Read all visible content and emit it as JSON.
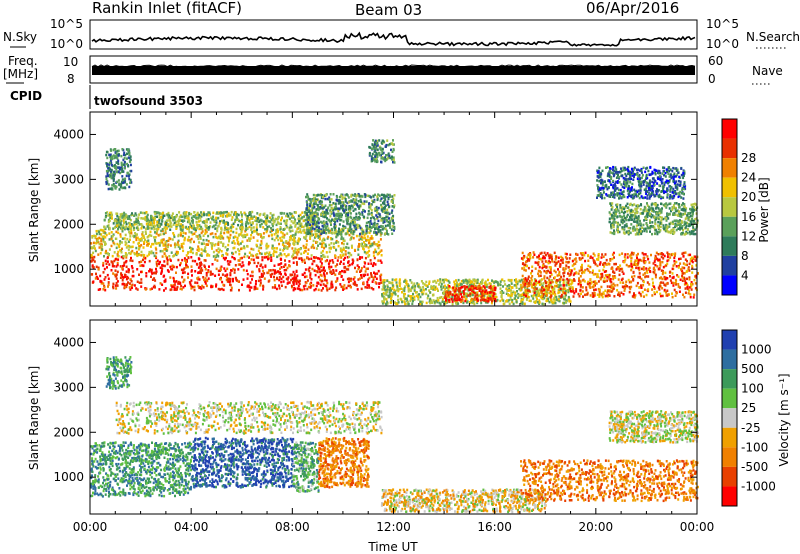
{
  "header": {
    "station": "Rankin Inlet (fitACF)",
    "beam": "Beam 03",
    "date": "06/Apr/2016"
  },
  "strip_panels": {
    "nsky_label": "N.Sky",
    "nsky_ticks": [
      "10^5",
      "10^0"
    ],
    "nsearch_label": "N.Search",
    "nsearch_ticks": [
      "10^5",
      "10^0"
    ],
    "freq_label_line1": "Freq.",
    "freq_label_line2": "[MHz]",
    "freq_ticks": [
      "10",
      "8"
    ],
    "nave_label": "Nave",
    "nave_ticks": [
      "60",
      "0"
    ],
    "cpid_label": "CPID",
    "cpid_value": "twofsound 3503"
  },
  "colors": {
    "power": [
      "#0000ff",
      "#2040a0",
      "#2e7b5a",
      "#5aa05a",
      "#b8c840",
      "#f0c000",
      "#f08000",
      "#e83000",
      "#ff0000"
    ],
    "velocity": [
      "#2040b0",
      "#2e6ea0",
      "#3c9a5a",
      "#60c040",
      "#c8c8c8",
      "#f0a000",
      "#f08000",
      "#e84000",
      "#ff0000"
    ]
  },
  "chart_data": [
    {
      "type": "heatmap",
      "name": "power",
      "ylabel": "Slant Range [km]",
      "ylim": [
        180,
        4500
      ],
      "yticks": [
        "1000",
        "2000",
        "3000",
        "4000"
      ],
      "colorbar_label": "Power [dB]",
      "colorbar_ticks": [
        "4",
        "8",
        "12",
        "16",
        "20",
        "24",
        "28"
      ],
      "xlim_hours": [
        0,
        24
      ],
      "xticks": [
        "00:00",
        "04:00",
        "08:00",
        "12:00",
        "16:00",
        "20:00",
        "00:00"
      ],
      "regions": [
        {
          "t": [
            0.0,
            11.5
          ],
          "r": [
            550,
            1300
          ],
          "level": 7.5
        },
        {
          "t": [
            0.0,
            11.5
          ],
          "r": [
            1300,
            1900
          ],
          "level": 4.5
        },
        {
          "t": [
            0.5,
            9.0
          ],
          "r": [
            1900,
            2300
          ],
          "level": 3.5
        },
        {
          "t": [
            8.5,
            12.0
          ],
          "r": [
            1800,
            2700
          ],
          "level": 2.5
        },
        {
          "t": [
            0.6,
            1.6
          ],
          "r": [
            2800,
            3700
          ],
          "level": 2.0
        },
        {
          "t": [
            11.0,
            12.0
          ],
          "r": [
            3400,
            3900
          ],
          "level": 2.5
        },
        {
          "t": [
            11.5,
            19.0
          ],
          "r": [
            250,
            800
          ],
          "level": 4.0
        },
        {
          "t": [
            14.0,
            16.0
          ],
          "r": [
            300,
            650
          ],
          "level": 7.5
        },
        {
          "t": [
            17.0,
            24.0
          ],
          "r": [
            400,
            1400
          ],
          "level": 6.5
        },
        {
          "t": [
            20.5,
            24.0
          ],
          "r": [
            1800,
            2500
          ],
          "level": 3.0
        },
        {
          "t": [
            20.0,
            23.5
          ],
          "r": [
            2600,
            3300
          ],
          "level": 1.5
        }
      ]
    },
    {
      "type": "heatmap",
      "name": "velocity",
      "ylabel": "Slant Range [km]",
      "ylim": [
        180,
        4500
      ],
      "yticks": [
        "1000",
        "2000",
        "3000",
        "4000"
      ],
      "colorbar_label": "Velocity [m s⁻¹]",
      "colorbar_ticks": [
        "1000",
        "500",
        "100",
        "25",
        "-25",
        "-100",
        "-500",
        "-1000"
      ],
      "xlim_hours": [
        0,
        24
      ],
      "xticks": [
        "00:00",
        "04:00",
        "08:00",
        "12:00",
        "16:00",
        "20:00",
        "00:00"
      ],
      "xlabel": "Time UT",
      "regions": [
        {
          "t": [
            0.0,
            4.0
          ],
          "r": [
            600,
            1800
          ],
          "level": 2.0
        },
        {
          "t": [
            4.0,
            8.0
          ],
          "r": [
            800,
            1900
          ],
          "level": 0.5
        },
        {
          "t": [
            8.0,
            9.0
          ],
          "r": [
            700,
            1800
          ],
          "level": 2.5
        },
        {
          "t": [
            9.0,
            11.0
          ],
          "r": [
            800,
            1900
          ],
          "level": 6.0
        },
        {
          "t": [
            1.0,
            11.5
          ],
          "r": [
            2000,
            2700
          ],
          "level": 4.0
        },
        {
          "t": [
            0.6,
            1.6
          ],
          "r": [
            3000,
            3700
          ],
          "level": 2.0
        },
        {
          "t": [
            11.5,
            18.0
          ],
          "r": [
            250,
            750
          ],
          "level": 4.5
        },
        {
          "t": [
            17.0,
            24.0
          ],
          "r": [
            500,
            1400
          ],
          "level": 6.0
        },
        {
          "t": [
            20.5,
            24.0
          ],
          "r": [
            1800,
            2500
          ],
          "level": 4.0
        }
      ]
    }
  ]
}
